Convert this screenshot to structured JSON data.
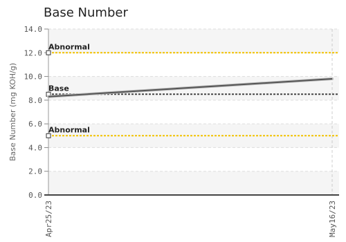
{
  "chart_data": {
    "type": "line",
    "title": "Base Number",
    "xlabel": "",
    "ylabel": "Base Number (mg KOH/g)",
    "ylim": [
      0,
      14
    ],
    "yticks": [
      "0.0",
      "2.0",
      "4.0",
      "6.0",
      "8.0",
      "10.0",
      "12.0",
      "14.0"
    ],
    "xticks": [
      "Apr25/23",
      "May16/23"
    ],
    "grid": true,
    "legend": "none",
    "series": [
      {
        "x": [
          "Apr25/23",
          "May16/23"
        ],
        "values": [
          8.3,
          9.8
        ],
        "color": "#555555"
      }
    ],
    "reference_lines": [
      {
        "label": "Abnormal",
        "value": 12.0,
        "color": "#f2c200"
      },
      {
        "label": "Base",
        "value": 8.5,
        "color": "#444444"
      },
      {
        "label": "Abnormal",
        "value": 5.0,
        "color": "#f2c200"
      }
    ]
  }
}
